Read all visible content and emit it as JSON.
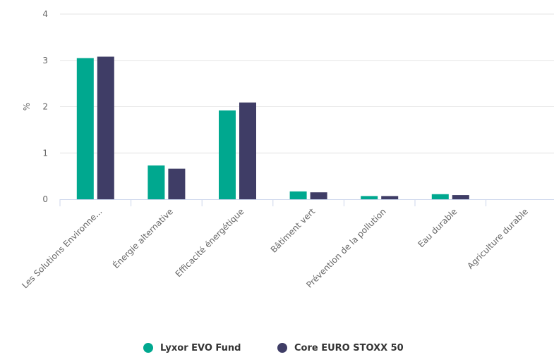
{
  "chart_data": {
    "type": "bar",
    "categories": [
      "Les Solutions Environne...",
      "Énergie alternative",
      "Efficacité énergétique",
      "Bâtiment vert",
      "Prévention de la pollution",
      "Eau durable",
      "Agriculture durable"
    ],
    "series": [
      {
        "name": "Lyxor EVO Fund",
        "color": "#00a88f",
        "values": [
          3.05,
          0.73,
          1.92,
          0.17,
          0.07,
          0.11,
          0
        ]
      },
      {
        "name": "Core EURO STOXX 50",
        "color": "#3f3d66",
        "values": [
          3.08,
          0.66,
          2.09,
          0.15,
          0.07,
          0.09,
          0
        ]
      }
    ],
    "title": "",
    "xlabel": "",
    "ylabel": "%",
    "ylim": [
      0,
      4
    ],
    "yticks": [
      0,
      1,
      2,
      3,
      4
    ],
    "grid": true,
    "legend_position": "bottom-center"
  }
}
